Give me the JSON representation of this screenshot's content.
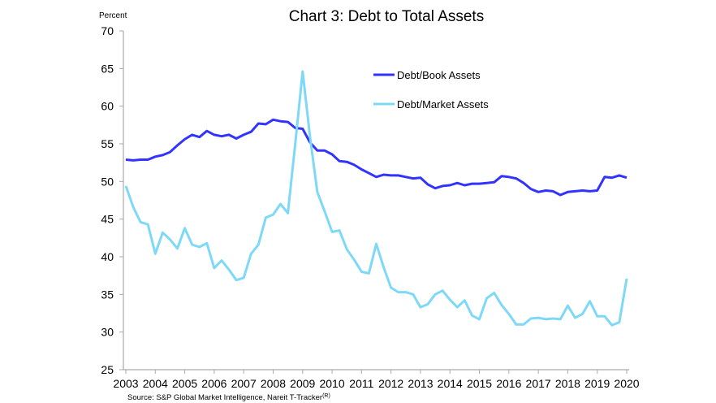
{
  "chart_data": {
    "type": "line",
    "title": "Chart 3: Debt to Total Assets",
    "ylabel": "Percent",
    "xlabel": "",
    "source": "Source: S&P Global Market Intelligence, Nareit T-Tracker",
    "source_superscript": "(R)",
    "ylim": [
      25,
      70
    ],
    "xlim": [
      2003,
      2020
    ],
    "yticks": [
      25,
      30,
      35,
      40,
      45,
      50,
      55,
      60,
      65,
      70
    ],
    "xticks": [
      2003,
      2004,
      2005,
      2006,
      2007,
      2008,
      2009,
      2010,
      2011,
      2012,
      2013,
      2014,
      2015,
      2016,
      2017,
      2018,
      2019,
      2020
    ],
    "x_start": 2003,
    "x_step": 0.25,
    "legend_position": "top-center",
    "grid": false,
    "series": [
      {
        "name": "Debt/Book Assets",
        "color": "#3333ff",
        "values": [
          52.9,
          52.8,
          52.9,
          52.9,
          53.3,
          53.5,
          53.9,
          54.8,
          55.6,
          56.2,
          55.9,
          56.7,
          56.2,
          56.0,
          56.2,
          55.7,
          56.2,
          56.6,
          57.7,
          57.6,
          58.2,
          58.0,
          57.9,
          57.1,
          57.0,
          55.2,
          54.1,
          54.1,
          53.6,
          52.7,
          52.6,
          52.2,
          51.6,
          51.1,
          50.6,
          50.9,
          50.8,
          50.8,
          50.6,
          50.4,
          50.5,
          49.6,
          49.1,
          49.4,
          49.5,
          49.8,
          49.5,
          49.7,
          49.7,
          49.8,
          49.9,
          50.7,
          50.6,
          50.4,
          49.8,
          49.0,
          48.6,
          48.8,
          48.7,
          48.2,
          48.6,
          48.7,
          48.8,
          48.7,
          48.8,
          50.6,
          50.5,
          50.8,
          50.5
        ]
      },
      {
        "name": "Debt/Market Assets",
        "color": "#7dd9f7",
        "values": [
          49.4,
          46.6,
          44.6,
          44.3,
          40.4,
          43.2,
          42.3,
          41.1,
          43.8,
          41.6,
          41.3,
          41.8,
          38.5,
          39.5,
          38.3,
          36.9,
          37.2,
          40.4,
          41.6,
          45.2,
          45.6,
          47.0,
          45.8,
          55.0,
          64.6,
          56.0,
          48.6,
          46.0,
          43.3,
          43.5,
          41.0,
          39.6,
          38.0,
          37.8,
          41.7,
          38.6,
          35.9,
          35.3,
          35.3,
          35.0,
          33.3,
          33.7,
          35.0,
          35.5,
          34.3,
          33.3,
          34.2,
          32.2,
          31.7,
          34.5,
          35.2,
          33.6,
          32.4,
          31.0,
          31.0,
          31.8,
          31.9,
          31.7,
          31.8,
          31.7,
          33.5,
          31.9,
          32.4,
          34.1,
          32.1,
          32.1,
          30.9,
          31.3,
          37.1
        ]
      }
    ]
  }
}
